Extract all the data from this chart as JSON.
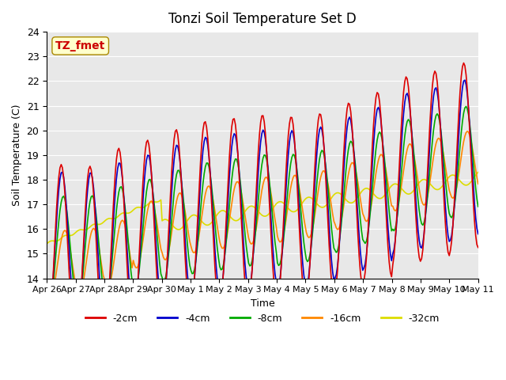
{
  "title": "Tonzi Soil Temperature Set D",
  "xlabel": "Time",
  "ylabel": "Soil Temperature (C)",
  "ylim": [
    14.0,
    24.0
  ],
  "yticks": [
    14.0,
    15.0,
    16.0,
    17.0,
    18.0,
    19.0,
    20.0,
    21.0,
    22.0,
    23.0,
    24.0
  ],
  "xtick_labels": [
    "Apr 26",
    "Apr 27",
    "Apr 28",
    "Apr 29",
    "Apr 30",
    "May 1",
    "May 2",
    "May 3",
    "May 4",
    "May 5",
    "May 6",
    "May 7",
    "May 8",
    "May 9",
    "May 10",
    "May 11"
  ],
  "legend_labels": [
    "-2cm",
    "-4cm",
    "-8cm",
    "-16cm",
    "-32cm"
  ],
  "line_colors": [
    "#dd0000",
    "#0000cc",
    "#00aa00",
    "#ff8800",
    "#dddd00"
  ],
  "annotation_text": "TZ_fmet",
  "annotation_bg": "#ffffcc",
  "annotation_fg": "#cc0000",
  "plot_bg": "#e8e8e8",
  "n_days": 15,
  "n_per_day": 24
}
